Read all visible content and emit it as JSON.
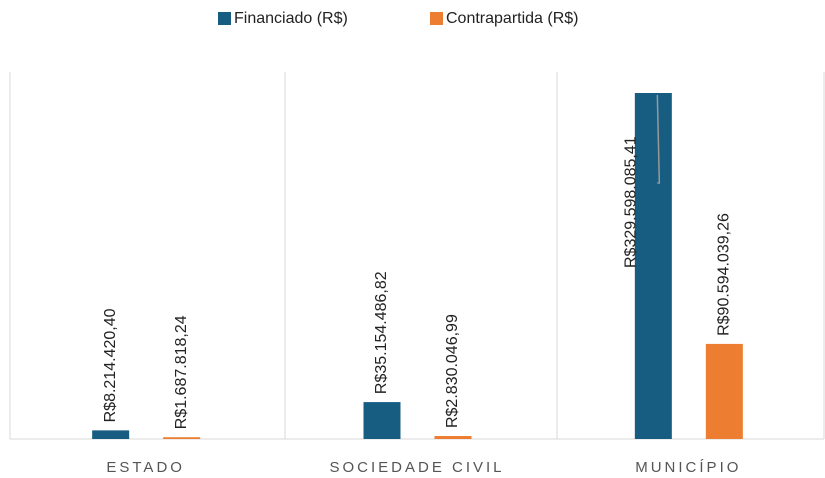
{
  "chart_data": {
    "type": "bar",
    "categories": [
      "ESTADO",
      "SOCIEDADE CIVIL",
      "MUNICÍPIO"
    ],
    "series": [
      {
        "name": "Financiado (R$)",
        "color": "#175d82",
        "values": [
          8214420.4,
          35154486.82,
          329598085.41
        ],
        "value_labels": [
          "R$8.214.420,40",
          "R$35.154.486,82",
          "R$329.598.085,41"
        ]
      },
      {
        "name": "Contrapartida (R$)",
        "color": "#ed7d31",
        "values": [
          1687818.24,
          2830046.99,
          90594039.26
        ],
        "value_labels": [
          "R$1.687.818,24",
          "R$2.830.046,99",
          "R$90.594.039,26"
        ]
      }
    ],
    "legend": "top"
  }
}
